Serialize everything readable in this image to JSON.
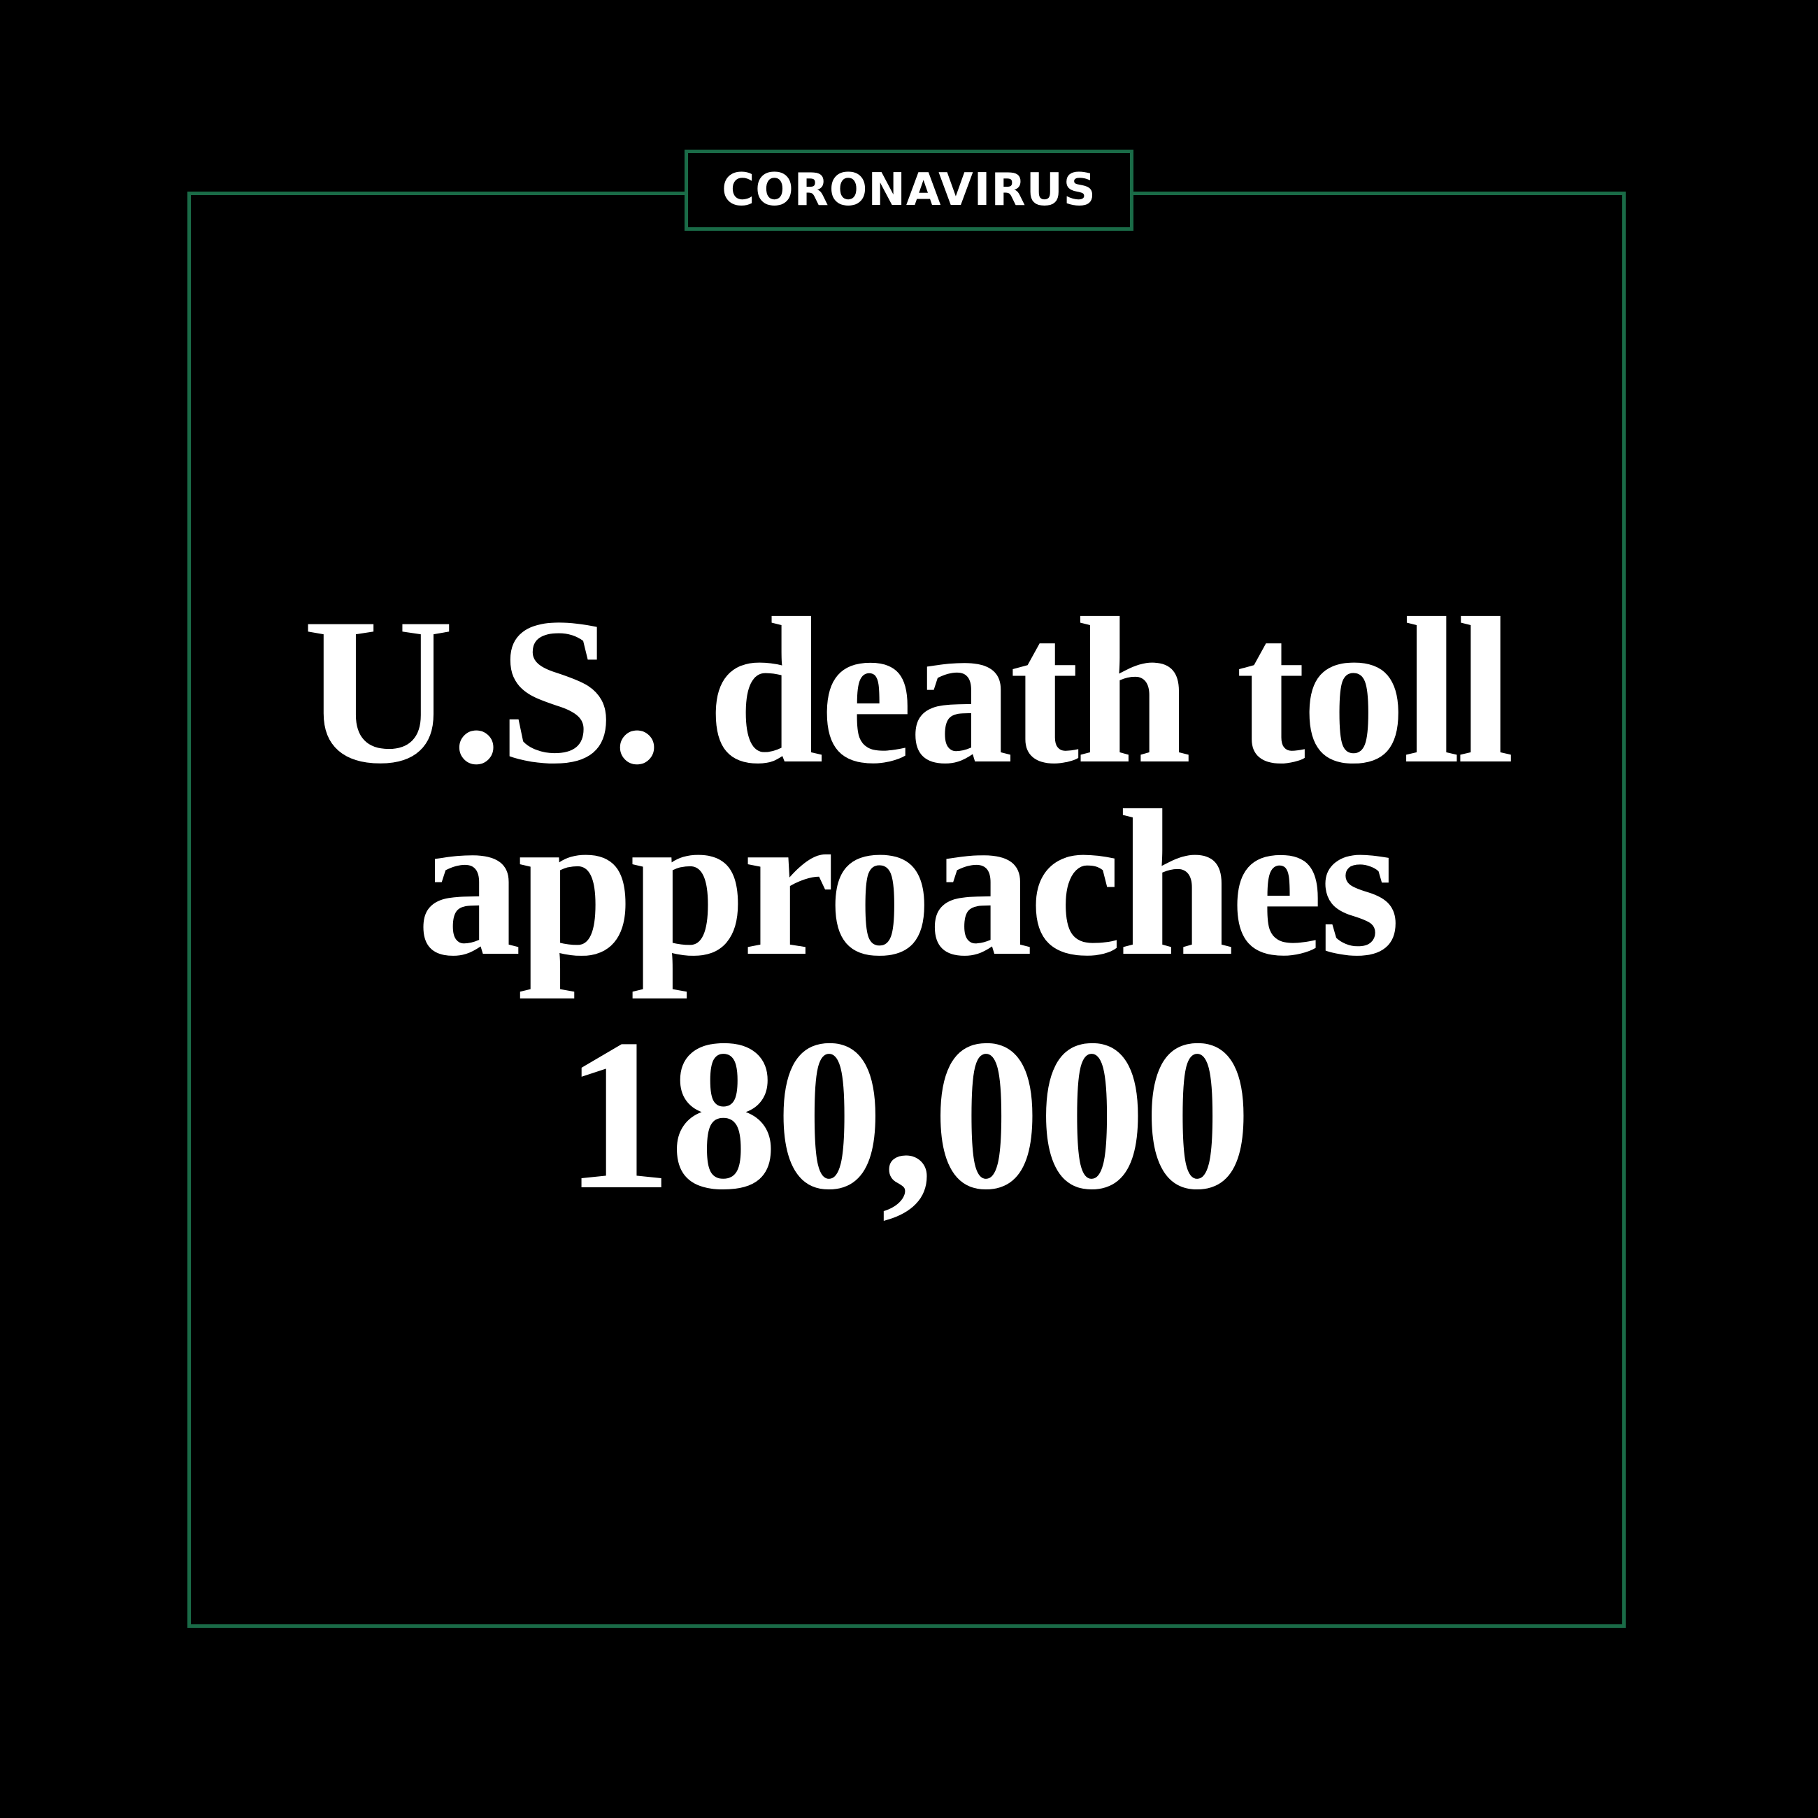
{
  "tag": {
    "label": "CORONAVIRUS"
  },
  "headline": {
    "lines": [
      "U.S. death toll",
      "approaches",
      "180,000"
    ]
  },
  "colors": {
    "background": "#000000",
    "frame": "#1a6b47",
    "text": "#ffffff"
  }
}
